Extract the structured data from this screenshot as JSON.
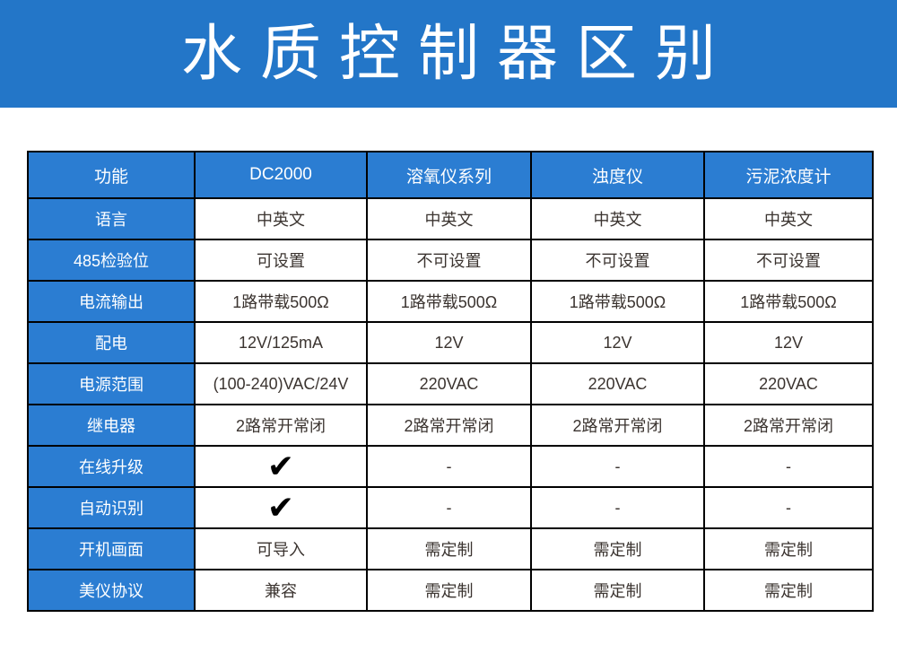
{
  "banner": {
    "title": "水质控制器区别"
  },
  "colors": {
    "banner_bg": "#2376c8",
    "table_cell_bg": "#2b7dd2",
    "border": "#000000",
    "data_text": "#3b3430",
    "header_text": "#ffffff"
  },
  "chart_data": {
    "type": "table",
    "title": "水质控制器区别",
    "columns": [
      "功能",
      "DC2000",
      "溶氧仪系列",
      "浊度仪",
      "污泥浓度计"
    ],
    "rows": [
      {
        "label": "语言",
        "values": [
          "中英文",
          "中英文",
          "中英文",
          "中英文"
        ]
      },
      {
        "label": "485检验位",
        "values": [
          "可设置",
          "不可设置",
          "不可设置",
          "不可设置"
        ]
      },
      {
        "label": "电流输出",
        "values": [
          "1路带载500Ω",
          "1路带载500Ω",
          "1路带载500Ω",
          "1路带载500Ω"
        ]
      },
      {
        "label": "配电",
        "values": [
          "12V/125mA",
          "12V",
          "12V",
          "12V"
        ]
      },
      {
        "label": "电源范围",
        "values": [
          "(100-240)VAC/24V",
          "220VAC",
          "220VAC",
          "220VAC"
        ]
      },
      {
        "label": "继电器",
        "values": [
          "2路常开常闭",
          "2路常开常闭",
          "2路常开常闭",
          "2路常开常闭"
        ]
      },
      {
        "label": "在线升级",
        "values": [
          "✔",
          "-",
          "-",
          "-"
        ]
      },
      {
        "label": "自动识别",
        "values": [
          "✔",
          "-",
          "-",
          "-"
        ]
      },
      {
        "label": "开机画面",
        "values": [
          "可导入",
          "需定制",
          "需定制",
          "需定制"
        ]
      },
      {
        "label": "美仪协议",
        "values": [
          "兼容",
          "需定制",
          "需定制",
          "需定制"
        ]
      }
    ]
  }
}
